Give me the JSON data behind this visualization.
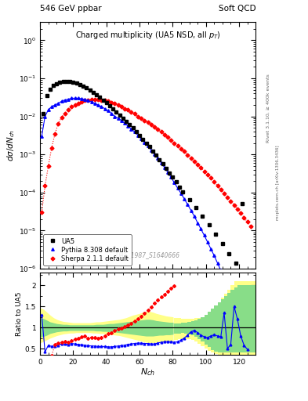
{
  "title_left": "546 GeV ppbar",
  "title_right": "Soft QCD",
  "plot_title": "Charged multiplicity (UA5 NSD, all p_{T})",
  "ylabel_main": "dσ/dN_{ch}",
  "ylabel_ratio": "Ratio to UA5",
  "xlabel": "N_{ch}",
  "watermark": "UA5_1987_S1640666",
  "right_label1": "Rivet 3.1.10, ≥ 400k events",
  "right_label2": "mcplots.cern.ch [arXiv:1306.3436]",
  "ua5_x": [
    2,
    4,
    6,
    8,
    10,
    12,
    14,
    16,
    18,
    20,
    22,
    24,
    26,
    28,
    30,
    32,
    34,
    36,
    38,
    40,
    42,
    44,
    46,
    48,
    50,
    52,
    54,
    56,
    58,
    60,
    62,
    64,
    66,
    68,
    70,
    72,
    74,
    76,
    78,
    80,
    82,
    84,
    86,
    90,
    94,
    98,
    102,
    106,
    110,
    114,
    118,
    122
  ],
  "ua5_y": [
    0.012,
    0.036,
    0.052,
    0.065,
    0.073,
    0.08,
    0.083,
    0.083,
    0.082,
    0.078,
    0.074,
    0.068,
    0.062,
    0.056,
    0.049,
    0.043,
    0.037,
    0.032,
    0.027,
    0.023,
    0.019,
    0.016,
    0.013,
    0.011,
    0.009,
    0.0075,
    0.0061,
    0.005,
    0.004,
    0.0032,
    0.0025,
    0.002,
    0.0016,
    0.0012,
    0.00095,
    0.00074,
    0.00057,
    0.00043,
    0.00033,
    0.00025,
    0.00019,
    0.00014,
    0.000105,
    6.5e-05,
    4e-05,
    2.4e-05,
    1.4e-05,
    8e-06,
    4.5e-06,
    2.5e-06,
    1.4e-06,
    5e-05
  ],
  "pythia_x": [
    1,
    3,
    5,
    7,
    9,
    11,
    13,
    15,
    17,
    19,
    21,
    23,
    25,
    27,
    29,
    31,
    33,
    35,
    37,
    39,
    41,
    43,
    45,
    47,
    49,
    51,
    53,
    55,
    57,
    59,
    61,
    63,
    65,
    67,
    69,
    71,
    73,
    75,
    77,
    79,
    81,
    83,
    85,
    87,
    89,
    91,
    93,
    95,
    97,
    99,
    101,
    103,
    105,
    107,
    109,
    111,
    113,
    115,
    117,
    119,
    121,
    123,
    125,
    127,
    129,
    131
  ],
  "pythia_y": [
    0.003,
    0.01,
    0.015,
    0.018,
    0.02,
    0.022,
    0.025,
    0.027,
    0.028,
    0.03,
    0.03,
    0.03,
    0.029,
    0.028,
    0.026,
    0.024,
    0.022,
    0.02,
    0.018,
    0.016,
    0.014,
    0.012,
    0.01,
    0.009,
    0.0078,
    0.0066,
    0.0056,
    0.0047,
    0.0039,
    0.0032,
    0.0026,
    0.0021,
    0.0017,
    0.0013,
    0.001,
    0.0008,
    0.00061,
    0.00046,
    0.00034,
    0.00025,
    0.00018,
    0.00013,
    9.5e-05,
    6.8e-05,
    4.8e-05,
    3.4e-05,
    2.4e-05,
    1.6e-05,
    1.1e-05,
    7.5e-06,
    5e-06,
    3.3e-06,
    2.2e-06,
    1.4e-06,
    9e-07,
    5.8e-07,
    3.6e-07,
    2.2e-07,
    1.4e-07,
    8.5e-08,
    5e-08,
    3e-08,
    1.8e-08,
    1e-08,
    6e-09,
    3.5e-09
  ],
  "sherpa_x": [
    1,
    3,
    5,
    7,
    9,
    11,
    13,
    15,
    17,
    19,
    21,
    23,
    25,
    27,
    29,
    31,
    33,
    35,
    37,
    39,
    41,
    43,
    45,
    47,
    49,
    51,
    53,
    55,
    57,
    59,
    61,
    63,
    65,
    67,
    69,
    71,
    73,
    75,
    77,
    79,
    81,
    83,
    85,
    87,
    89,
    91,
    93,
    95,
    97,
    99,
    101,
    103,
    105,
    107,
    109,
    111,
    113,
    115,
    117,
    119,
    121,
    123,
    125,
    127
  ],
  "sherpa_y": [
    3e-05,
    0.00015,
    0.0005,
    0.0015,
    0.0035,
    0.0065,
    0.0095,
    0.012,
    0.015,
    0.018,
    0.02,
    0.022,
    0.024,
    0.026,
    0.027,
    0.028,
    0.028,
    0.028,
    0.027,
    0.026,
    0.025,
    0.023,
    0.022,
    0.02,
    0.018,
    0.016,
    0.015,
    0.013,
    0.012,
    0.01,
    0.009,
    0.0079,
    0.0069,
    0.006,
    0.0052,
    0.0045,
    0.0039,
    0.0033,
    0.0028,
    0.0024,
    0.002,
    0.0017,
    0.0014,
    0.0012,
    0.00098,
    0.00081,
    0.00067,
    0.00055,
    0.00045,
    0.00036,
    0.00029,
    0.00024,
    0.00019,
    0.00015,
    0.00012,
    9.5e-05,
    7.5e-05,
    6e-05,
    4.7e-05,
    3.7e-05,
    2.9e-05,
    2.2e-05,
    1.7e-05,
    1.3e-05
  ],
  "ratio_pythia_x": [
    1,
    3,
    5,
    7,
    9,
    11,
    13,
    15,
    17,
    19,
    21,
    23,
    25,
    27,
    29,
    31,
    33,
    35,
    37,
    39,
    41,
    43,
    45,
    47,
    49,
    51,
    53,
    55,
    57,
    59,
    61,
    63,
    65,
    67,
    69,
    71,
    73,
    75,
    77,
    79,
    81,
    83,
    85,
    87,
    89,
    91,
    93,
    95,
    97,
    99,
    101,
    103,
    105,
    107,
    109,
    111,
    113,
    115,
    117,
    119,
    121,
    123,
    125
  ],
  "ratio_pythia_y": [
    1.3,
    0.42,
    0.58,
    0.55,
    0.56,
    0.58,
    0.61,
    0.61,
    0.6,
    0.62,
    0.61,
    0.6,
    0.59,
    0.58,
    0.57,
    0.56,
    0.56,
    0.55,
    0.55,
    0.55,
    0.54,
    0.54,
    0.55,
    0.56,
    0.57,
    0.58,
    0.6,
    0.61,
    0.62,
    0.63,
    0.63,
    0.62,
    0.62,
    0.61,
    0.61,
    0.63,
    0.65,
    0.66,
    0.67,
    0.66,
    0.65,
    0.66,
    0.7,
    0.75,
    0.82,
    0.9,
    0.93,
    0.88,
    0.82,
    0.78,
    0.76,
    0.8,
    0.83,
    0.8,
    0.78,
    1.35,
    0.5,
    0.6,
    1.5,
    1.2,
    0.8,
    0.58,
    0.48
  ],
  "ratio_sherpa_x": [
    1,
    3,
    5,
    7,
    9,
    11,
    13,
    15,
    17,
    19,
    21,
    23,
    25,
    27,
    29,
    31,
    33,
    35,
    37,
    39,
    41,
    43,
    45,
    47,
    49,
    51,
    53,
    55,
    57,
    59,
    61,
    63,
    65,
    67,
    69,
    71,
    73,
    75,
    77,
    79,
    81
  ],
  "ratio_sherpa_y": [
    0.005,
    0.06,
    0.14,
    0.33,
    0.6,
    0.63,
    0.65,
    0.67,
    0.65,
    0.68,
    0.72,
    0.75,
    0.78,
    0.8,
    0.75,
    0.77,
    0.76,
    0.75,
    0.77,
    0.8,
    0.85,
    0.88,
    0.92,
    0.96,
    0.99,
    1.02,
    1.06,
    1.1,
    1.15,
    1.21,
    1.27,
    1.33,
    1.41,
    1.49,
    1.57,
    1.65,
    1.72,
    1.78,
    1.86,
    1.93,
    1.98
  ],
  "band_x": [
    0,
    2,
    4,
    6,
    8,
    10,
    12,
    14,
    16,
    18,
    20,
    22,
    24,
    26,
    28,
    30,
    32,
    34,
    36,
    38,
    40,
    42,
    44,
    46,
    48,
    50,
    52,
    54,
    56,
    58,
    60,
    62,
    64,
    66,
    68,
    70,
    72,
    74,
    76,
    78,
    80
  ],
  "yellow_upper": [
    1.45,
    1.42,
    1.35,
    1.28,
    1.22,
    1.18,
    1.15,
    1.13,
    1.12,
    1.11,
    1.1,
    1.1,
    1.1,
    1.1,
    1.1,
    1.1,
    1.11,
    1.12,
    1.12,
    1.13,
    1.14,
    1.15,
    1.16,
    1.17,
    1.18,
    1.2,
    1.22,
    1.25,
    1.28,
    1.3,
    1.32,
    1.35,
    1.37,
    1.37,
    1.35,
    1.32,
    1.3,
    1.28,
    1.26,
    1.25,
    1.24
  ],
  "yellow_lower": [
    0.65,
    0.68,
    0.72,
    0.76,
    0.79,
    0.82,
    0.84,
    0.86,
    0.87,
    0.88,
    0.88,
    0.89,
    0.89,
    0.89,
    0.89,
    0.89,
    0.88,
    0.88,
    0.87,
    0.87,
    0.86,
    0.85,
    0.84,
    0.83,
    0.82,
    0.8,
    0.78,
    0.76,
    0.74,
    0.72,
    0.7,
    0.68,
    0.66,
    0.65,
    0.65,
    0.66,
    0.67,
    0.67,
    0.68,
    0.69,
    0.7
  ],
  "green_upper": [
    1.22,
    1.2,
    1.16,
    1.12,
    1.1,
    1.08,
    1.07,
    1.06,
    1.06,
    1.05,
    1.05,
    1.05,
    1.05,
    1.05,
    1.05,
    1.05,
    1.05,
    1.06,
    1.06,
    1.06,
    1.07,
    1.08,
    1.08,
    1.09,
    1.1,
    1.11,
    1.12,
    1.13,
    1.14,
    1.15,
    1.16,
    1.17,
    1.18,
    1.18,
    1.17,
    1.15,
    1.14,
    1.13,
    1.12,
    1.11,
    1.11
  ],
  "green_lower": [
    0.78,
    0.8,
    0.83,
    0.87,
    0.89,
    0.91,
    0.92,
    0.93,
    0.93,
    0.94,
    0.94,
    0.94,
    0.94,
    0.94,
    0.94,
    0.94,
    0.94,
    0.93,
    0.93,
    0.92,
    0.92,
    0.91,
    0.91,
    0.9,
    0.89,
    0.88,
    0.87,
    0.86,
    0.85,
    0.84,
    0.83,
    0.82,
    0.81,
    0.81,
    0.81,
    0.82,
    0.83,
    0.83,
    0.84,
    0.84,
    0.85
  ],
  "sparse_yellow_x": [
    82,
    84,
    86,
    88,
    90,
    92,
    94,
    96,
    98,
    100,
    102,
    104,
    106,
    108,
    110,
    112,
    114,
    116,
    118,
    120,
    122,
    124,
    126,
    128,
    130,
    132,
    134
  ],
  "sparse_yellow_upper": [
    1.23,
    1.22,
    1.21,
    1.2,
    1.2,
    1.21,
    1.22,
    1.23,
    1.25,
    1.28,
    1.33,
    1.4,
    1.5,
    1.6,
    1.7,
    1.8,
    1.9,
    2.0,
    2.1,
    2.1,
    2.1,
    2.1,
    2.1,
    2.1,
    2.1,
    2.1,
    2.1
  ],
  "sparse_yellow_lower": [
    0.71,
    0.72,
    0.73,
    0.73,
    0.72,
    0.7,
    0.67,
    0.62,
    0.56,
    0.5,
    0.44,
    0.4,
    0.37,
    0.35,
    0.35,
    0.35,
    0.35,
    0.35,
    0.35,
    0.35,
    0.35,
    0.35,
    0.35,
    0.35,
    0.35,
    0.35,
    0.35
  ],
  "sparse_green_x": [
    82,
    84,
    86,
    88,
    90,
    92,
    94,
    96,
    98,
    100,
    102,
    104,
    106,
    108,
    110,
    112,
    114,
    116,
    118,
    120,
    122,
    124,
    126,
    128,
    130,
    132,
    134
  ],
  "sparse_green_upper": [
    1.1,
    1.1,
    1.11,
    1.12,
    1.13,
    1.15,
    1.17,
    1.2,
    1.25,
    1.3,
    1.38,
    1.45,
    1.52,
    1.6,
    1.68,
    1.75,
    1.82,
    1.9,
    1.95,
    2.0,
    2.0,
    2.0,
    2.0,
    2.0,
    2.0,
    2.0,
    2.0
  ],
  "sparse_green_lower": [
    0.85,
    0.86,
    0.87,
    0.86,
    0.84,
    0.82,
    0.78,
    0.73,
    0.67,
    0.6,
    0.53,
    0.47,
    0.43,
    0.4,
    0.4,
    0.4,
    0.4,
    0.4,
    0.4,
    0.4,
    0.4,
    0.4,
    0.4,
    0.4,
    0.4,
    0.4,
    0.4
  ],
  "xlim_main": [
    0,
    130
  ],
  "ylim_main": [
    1e-06,
    3.0
  ],
  "xlim_ratio": [
    0,
    130
  ],
  "ylim_ratio": [
    0.35,
    2.3
  ]
}
